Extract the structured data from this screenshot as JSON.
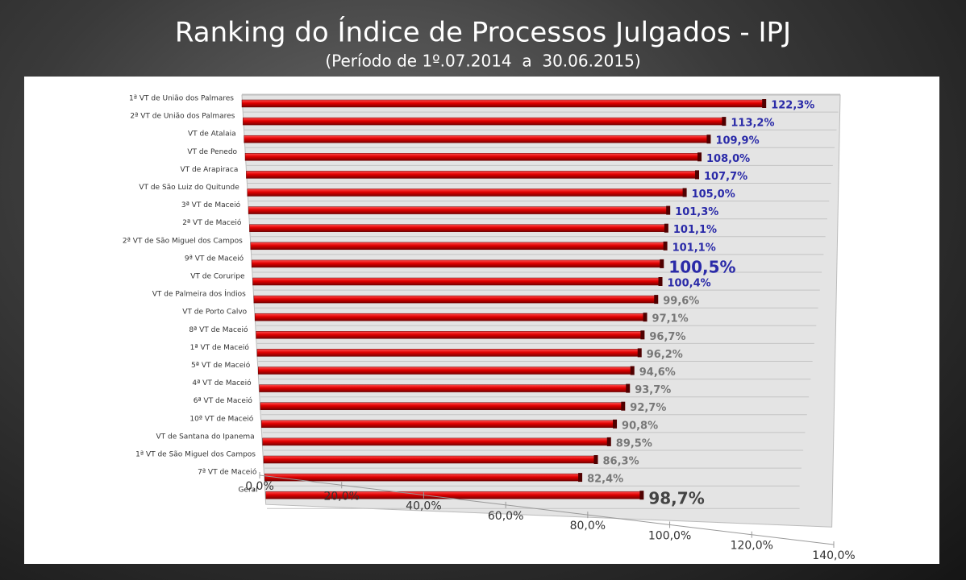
{
  "chart_data": {
    "type": "bar3d",
    "title": "Ranking do Índice de Processos Julgados - IPJ",
    "subtitle": "(Período de 1º.07.2014  a  30.06.2015)",
    "categories": [
      "1ª VT de União dos Palmares",
      "2ª VT de União dos Palmares",
      "VT de Atalaia",
      "VT de Penedo",
      "VT de Arapiraca",
      "VT de São Luiz do Quitunde",
      "3ª VT de Maceió",
      "2ª VT de Maceió",
      "2ª VT de São Miguel dos Campos",
      "9ª VT de Maceió",
      "VT de Coruripe",
      "VT de Palmeira dos Índios",
      "VT de Porto Calvo",
      "8ª VT de Maceió",
      "1ª VT de Maceió",
      "5ª VT de Maceió",
      "4ª VT de Maceió",
      "6ª VT de Maceió",
      "10ª VT de Maceió",
      "VT de Santana do Ipanema",
      "1ª VT de São Miguel dos Campos",
      "7ª VT de Maceió",
      "Geral"
    ],
    "values": [
      122.3,
      113.2,
      109.9,
      108.0,
      107.7,
      105.0,
      101.3,
      101.1,
      101.1,
      100.5,
      100.4,
      99.6,
      97.1,
      96.7,
      96.2,
      94.6,
      93.7,
      92.7,
      90.8,
      89.5,
      86.3,
      82.4,
      98.7
    ],
    "value_labels": [
      "122,3%",
      "113,2%",
      "109,9%",
      "108,0%",
      "107,7%",
      "105,0%",
      "101,3%",
      "101,1%",
      "101,1%",
      "100,5%",
      "100,4%",
      "99,6%",
      "97,1%",
      "96,7%",
      "96,2%",
      "94,6%",
      "93,7%",
      "92,7%",
      "90,8%",
      "89,5%",
      "86,3%",
      "82,4%",
      "98,7%"
    ],
    "value_label_colors": [
      "#2a2aa8",
      "#2a2aa8",
      "#2a2aa8",
      "#2a2aa8",
      "#2a2aa8",
      "#2a2aa8",
      "#2a2aa8",
      "#2a2aa8",
      "#2a2aa8",
      "#2a2aa8",
      "#2a2aa8",
      "#777777",
      "#777777",
      "#777777",
      "#777777",
      "#777777",
      "#777777",
      "#777777",
      "#777777",
      "#777777",
      "#777777",
      "#777777",
      "#444444"
    ],
    "value_label_emphasis": [
      false,
      false,
      false,
      false,
      false,
      false,
      false,
      false,
      false,
      true,
      false,
      false,
      false,
      false,
      false,
      false,
      false,
      false,
      false,
      false,
      false,
      false,
      true
    ],
    "color": "#d40000",
    "xlim": [
      0,
      140
    ],
    "xticks": [
      {
        "value": 0,
        "label": "0,0%"
      },
      {
        "value": 20,
        "label": "20,0%"
      },
      {
        "value": 40,
        "label": "40,0%"
      },
      {
        "value": 60,
        "label": "60,0%"
      },
      {
        "value": 80,
        "label": "80,0%"
      },
      {
        "value": 100,
        "label": "100,0%"
      },
      {
        "value": 120,
        "label": "120,0%"
      },
      {
        "value": 140,
        "label": "140,0%"
      }
    ],
    "grid": true
  }
}
